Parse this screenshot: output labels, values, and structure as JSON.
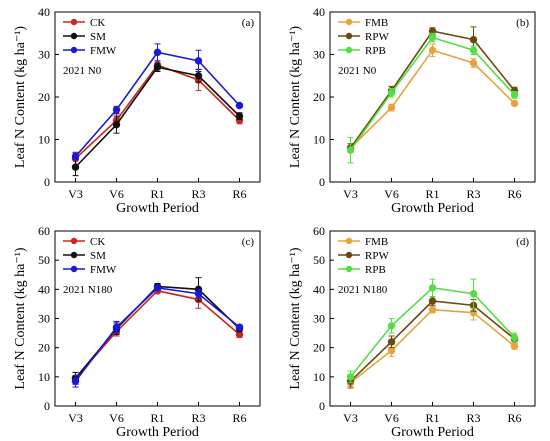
{
  "chart_data": [
    {
      "type": "line",
      "panel_label": "(a)",
      "annotation": "2021 N0",
      "xlabel": "Growth Period",
      "ylabel": "Leaf N Content (kg ha⁻¹)",
      "categories": [
        "V3",
        "V6",
        "R1",
        "R3",
        "R6"
      ],
      "ylim": [
        0,
        40
      ],
      "yticks": [
        0,
        10,
        20,
        30,
        40
      ],
      "legend_position": "top-left",
      "series": [
        {
          "name": "CK",
          "color": "#c8281e",
          "values": [
            5.5,
            14.5,
            27.5,
            24.0,
            14.5
          ],
          "errors": [
            1.5,
            1.5,
            1.0,
            2.5,
            0.8
          ]
        },
        {
          "name": "SM",
          "color": "#111111",
          "values": [
            3.5,
            13.5,
            27.0,
            25.0,
            15.5
          ],
          "errors": [
            2.0,
            2.0,
            1.0,
            1.5,
            0.8
          ]
        },
        {
          "name": "FMW",
          "color": "#1a1ad6",
          "values": [
            6.0,
            17.0,
            30.5,
            28.5,
            18.0
          ],
          "errors": [
            0.8,
            0.8,
            2.0,
            2.5,
            0.5
          ]
        }
      ]
    },
    {
      "type": "line",
      "panel_label": "(b)",
      "annotation": "2021 N0",
      "xlabel": "Growth Period",
      "ylabel": "Leaf N Content (kg ha⁻¹)",
      "categories": [
        "V3",
        "V6",
        "R1",
        "R3",
        "R6"
      ],
      "ylim": [
        0,
        40
      ],
      "yticks": [
        0,
        10,
        20,
        30,
        40
      ],
      "legend_position": "top-left",
      "series": [
        {
          "name": "FMB",
          "color": "#e6a33e",
          "values": [
            8.0,
            17.5,
            31.0,
            28.0,
            18.5
          ],
          "errors": [
            1.0,
            0.8,
            1.5,
            1.0,
            0.5
          ]
        },
        {
          "name": "RPW",
          "color": "#6b4a12",
          "values": [
            8.0,
            21.5,
            35.5,
            33.5,
            21.5
          ],
          "errors": [
            1.0,
            1.0,
            0.8,
            3.0,
            0.8
          ]
        },
        {
          "name": "RPB",
          "color": "#55dd44",
          "values": [
            7.5,
            21.0,
            34.0,
            31.0,
            20.5
          ],
          "errors": [
            3.0,
            1.0,
            1.0,
            1.0,
            0.8
          ]
        }
      ]
    },
    {
      "type": "line",
      "panel_label": "(c)",
      "annotation": "2021 N180",
      "xlabel": "Growth Period",
      "ylabel": "Leaf N Content (kg ha⁻¹)",
      "categories": [
        "V3",
        "V6",
        "R1",
        "R3",
        "R6"
      ],
      "ylim": [
        0,
        60
      ],
      "yticks": [
        0,
        10,
        20,
        30,
        40,
        50,
        60
      ],
      "legend_position": "top-left",
      "series": [
        {
          "name": "CK",
          "color": "#c8281e",
          "values": [
            9.5,
            25.5,
            39.5,
            36.5,
            24.5
          ],
          "errors": [
            2.0,
            1.5,
            1.0,
            3.0,
            1.0
          ]
        },
        {
          "name": "SM",
          "color": "#111111",
          "values": [
            9.5,
            26.5,
            41.0,
            40.0,
            26.5
          ],
          "errors": [
            2.0,
            2.0,
            1.0,
            4.0,
            1.0
          ]
        },
        {
          "name": "FMW",
          "color": "#1a1ad6",
          "values": [
            8.5,
            27.0,
            40.5,
            38.5,
            27.0
          ],
          "errors": [
            2.0,
            2.0,
            0.8,
            1.5,
            0.8
          ]
        }
      ]
    },
    {
      "type": "line",
      "panel_label": "(d)",
      "annotation": "2021 N180",
      "xlabel": "Growth Period",
      "ylabel": "Leaf N Content (kg ha⁻¹)",
      "categories": [
        "V3",
        "V6",
        "R1",
        "R3",
        "R6"
      ],
      "ylim": [
        0,
        60
      ],
      "yticks": [
        0,
        10,
        20,
        30,
        40,
        50,
        60
      ],
      "legend_position": "top-left",
      "series": [
        {
          "name": "FMB",
          "color": "#e6a33e",
          "values": [
            8.0,
            19.0,
            33.0,
            32.0,
            20.5
          ],
          "errors": [
            2.0,
            2.0,
            1.0,
            2.5,
            1.0
          ]
        },
        {
          "name": "RPW",
          "color": "#6b4a12",
          "values": [
            8.5,
            22.0,
            36.0,
            34.5,
            23.0
          ],
          "errors": [
            2.0,
            2.0,
            1.5,
            2.0,
            1.0
          ]
        },
        {
          "name": "RPB",
          "color": "#55dd44",
          "values": [
            10.0,
            27.5,
            40.5,
            38.5,
            23.5
          ],
          "errors": [
            2.0,
            2.5,
            3.0,
            5.0,
            1.5
          ]
        }
      ]
    }
  ]
}
